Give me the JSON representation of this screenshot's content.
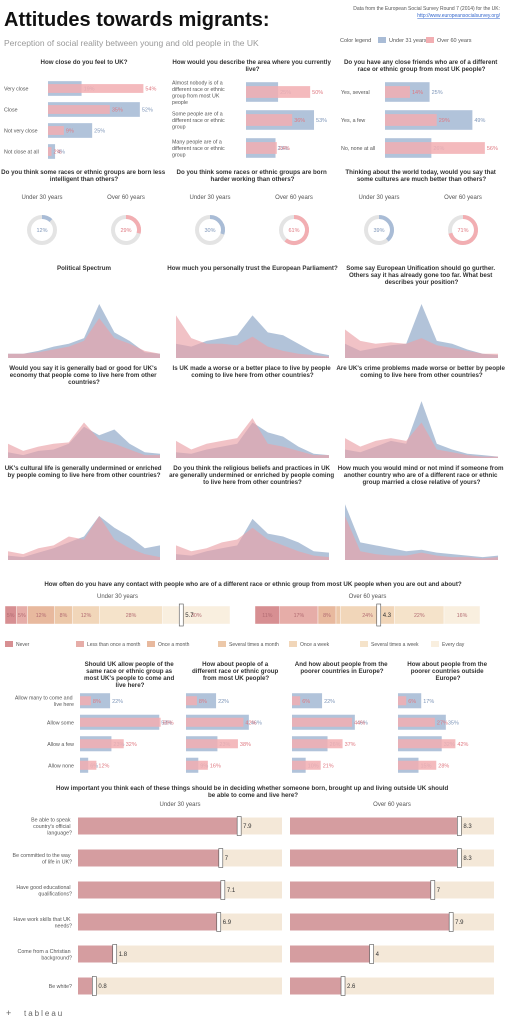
{
  "header": {
    "title": "Attitudes towards migrants:",
    "subtitle": "Perception of social reality between young and old people in the UK",
    "source": "Data from the European Social Survey Round 7 (2014) for the UK:",
    "link": "http://www.europeansocialsurvey.org/",
    "legend_title": "Color legend",
    "legend": [
      {
        "name": "Under 31 years",
        "color": "#a9bcd6"
      },
      {
        "name": "Over 60 years",
        "color": "#f2aeb2"
      }
    ],
    "footer": "tableau"
  },
  "chart_data": [
    {
      "type": "hbar",
      "title": "How close do you feel to UK?",
      "categories": [
        "Very close",
        "Close",
        "Not very close",
        "Not close at all"
      ],
      "xlim": [
        0,
        60
      ],
      "series": [
        {
          "color": "#a9bcd6",
          "values": [
            19,
            52,
            25,
            4
          ],
          "value_labels": [
            "19%",
            "52%",
            "25%",
            "4%"
          ]
        },
        {
          "color": "#f2aeb2",
          "values": [
            54,
            35,
            9,
            2
          ],
          "value_labels": [
            "54%",
            "35%",
            "9%",
            "2%"
          ]
        }
      ]
    },
    {
      "type": "hbar",
      "title": "How would you describe the area where you currently live?",
      "categories": [
        "Almost nobody is of a different race or ethnic group from most UK people",
        "Some people are of a different race or ethnic group",
        "Many people are of a different race or ethnic group"
      ],
      "xlim": [
        0,
        60
      ],
      "series": [
        {
          "color": "#a9bcd6",
          "values": [
            25,
            53,
            23
          ],
          "value_labels": [
            "25%",
            "53%",
            "23%"
          ]
        },
        {
          "color": "#f2aeb2",
          "values": [
            50,
            36,
            24
          ],
          "value_labels": [
            "50%",
            "36%",
            "24%"
          ]
        }
      ]
    },
    {
      "type": "hbar",
      "title": "Do you have any close friends who are of a different race or ethnic group from most UK people?",
      "categories": [
        "Yes, several",
        "Yes, a few",
        "No, none at all"
      ],
      "xlim": [
        0,
        60
      ],
      "series": [
        {
          "color": "#a9bcd6",
          "values": [
            25,
            49,
            26
          ],
          "value_labels": [
            "25%",
            "49%",
            "26%"
          ]
        },
        {
          "color": "#f2aeb2",
          "values": [
            14,
            29,
            56
          ],
          "value_labels": [
            "14%",
            "29%",
            "56%"
          ]
        }
      ]
    },
    {
      "type": "donut",
      "title": "Do you think some races or ethnic groups are born less intelligent than others?",
      "groups": [
        "Under 30 years",
        "Over 60 years"
      ],
      "values": [
        12,
        29
      ],
      "value_labels": [
        "12%",
        "29%"
      ],
      "colors": [
        "#a9bcd6",
        "#f2aeb2"
      ],
      "ylim": [
        0,
        100
      ]
    },
    {
      "type": "donut",
      "title": "Do you think some races or ethnic groups are born harder working than others?",
      "groups": [
        "Under 30 years",
        "Over 60 years"
      ],
      "values": [
        30,
        61
      ],
      "value_labels": [
        "30%",
        "61%"
      ],
      "colors": [
        "#a9bcd6",
        "#f2aeb2"
      ],
      "ylim": [
        0,
        100
      ]
    },
    {
      "type": "donut",
      "title": "Thinking about the world today, would you say that some cultures are much better than others?",
      "groups": [
        "Under 30 years",
        "Over 60 years"
      ],
      "values": [
        39,
        71
      ],
      "value_labels": [
        "39%",
        "71%"
      ],
      "colors": [
        "#a9bcd6",
        "#f2aeb2"
      ],
      "ylim": [
        0,
        100
      ]
    },
    {
      "type": "area",
      "title": "Political Spectrum",
      "ylim": [
        0,
        45
      ],
      "series": [
        {
          "color": "#9fb4d0",
          "values": [
            3,
            3,
            5,
            8,
            10,
            14,
            38,
            18,
            12,
            4,
            3
          ]
        },
        {
          "color": "#e9a2a8",
          "values": [
            3,
            3,
            4,
            6,
            8,
            12,
            28,
            14,
            10,
            5,
            3
          ]
        }
      ]
    },
    {
      "type": "area",
      "title": "How much you personally trust the European Parliament?",
      "ylim": [
        0,
        45
      ],
      "series": [
        {
          "color": "#9fb4d0",
          "values": [
            10,
            8,
            12,
            14,
            16,
            30,
            18,
            16,
            10,
            4,
            2
          ]
        },
        {
          "color": "#e9a2a8",
          "values": [
            30,
            14,
            10,
            10,
            9,
            15,
            8,
            5,
            3,
            2,
            1
          ]
        }
      ]
    },
    {
      "type": "area",
      "title": "Some say European Unification should go gurther. Others say it has already gone too far. What best describes your position?",
      "ylim": [
        0,
        45
      ],
      "series": [
        {
          "color": "#9fb4d0",
          "values": [
            10,
            5,
            7,
            9,
            10,
            38,
            12,
            10,
            6,
            3,
            2
          ]
        },
        {
          "color": "#e9a2a8",
          "values": [
            20,
            12,
            10,
            11,
            10,
            14,
            9,
            7,
            5,
            3,
            3
          ]
        }
      ]
    },
    {
      "type": "area",
      "title": "Would you say it is generally bad or good for UK's economy that people come to live here from other countries?",
      "ylim": [
        0,
        45
      ],
      "series": [
        {
          "color": "#9fb4d0",
          "values": [
            4,
            2,
            5,
            6,
            10,
            22,
            16,
            20,
            10,
            4,
            3
          ]
        },
        {
          "color": "#e9a2a8",
          "values": [
            10,
            5,
            8,
            10,
            11,
            25,
            13,
            10,
            6,
            2,
            2
          ]
        }
      ]
    },
    {
      "type": "area",
      "title": "Is UK made a worse or a better place to live by people coming to live here from other countries?",
      "ylim": [
        0,
        45
      ],
      "series": [
        {
          "color": "#9fb4d0",
          "values": [
            4,
            3,
            6,
            8,
            10,
            25,
            18,
            15,
            8,
            3,
            2
          ]
        },
        {
          "color": "#e9a2a8",
          "values": [
            12,
            6,
            10,
            12,
            14,
            28,
            10,
            8,
            5,
            2,
            2
          ]
        }
      ]
    },
    {
      "type": "area",
      "title": "Are UK's crime problems made worse or better by people coming to live here from other countries?",
      "ylim": [
        0,
        45
      ],
      "series": [
        {
          "color": "#9fb4d0",
          "values": [
            6,
            4,
            8,
            12,
            10,
            40,
            10,
            6,
            3,
            2,
            1
          ]
        },
        {
          "color": "#e9a2a8",
          "values": [
            14,
            8,
            12,
            14,
            12,
            25,
            6,
            4,
            2,
            1,
            1
          ]
        }
      ]
    },
    {
      "type": "area",
      "title": "UK's cultural life is generally undermined or enriched by people coming to live here from other countries?",
      "ylim": [
        0,
        45
      ],
      "series": [
        {
          "color": "#9fb4d0",
          "values": [
            3,
            2,
            5,
            8,
            12,
            16,
            30,
            22,
            16,
            8,
            10
          ]
        },
        {
          "color": "#e9a2a8",
          "values": [
            6,
            4,
            8,
            10,
            16,
            14,
            30,
            14,
            8,
            4,
            2
          ]
        }
      ]
    },
    {
      "type": "area",
      "title": "Do you think the religious beliefs and practices in UK are generally undermined or enriched by people coming to live here from other countries?",
      "ylim": [
        0,
        45
      ],
      "series": [
        {
          "color": "#9fb4d0",
          "values": [
            4,
            3,
            6,
            8,
            10,
            28,
            18,
            16,
            12,
            6,
            5
          ]
        },
        {
          "color": "#e9a2a8",
          "values": [
            10,
            6,
            8,
            12,
            14,
            22,
            14,
            10,
            6,
            3,
            2
          ]
        }
      ]
    },
    {
      "type": "area",
      "title": "How much you would mind or not mind if someone from another country who are of a different race or ethnic group married a close relative of yours?",
      "ylim": [
        0,
        45
      ],
      "series": [
        {
          "color": "#9fb4d0",
          "values": [
            38,
            12,
            10,
            8,
            6,
            7,
            5,
            4,
            3,
            2,
            3
          ]
        },
        {
          "color": "#e9a2a8",
          "values": [
            30,
            6,
            4,
            3,
            3,
            5,
            3,
            2,
            2,
            1,
            2
          ]
        }
      ]
    },
    {
      "type": "stacked_bar",
      "title": "How often do you have any contact with people who are of a different race or ethnic group from most UK people when you are out and about?",
      "categories": [
        "Never",
        "Less than once a month",
        "Once a month",
        "Several times a month",
        "Once a week",
        "Several times a week",
        "Every day"
      ],
      "colors": [
        "#d78f92",
        "#e6ada8",
        "#e8b99e",
        "#ecc8a9",
        "#f1d6b9",
        "#f5e3ca",
        "#f9efdf"
      ],
      "xlim": [
        0,
        100
      ],
      "mean_lim": [
        1,
        7
      ],
      "series": [
        {
          "name": "Under 30 years",
          "values": [
            5,
            5,
            12,
            8,
            12,
            28,
            30
          ],
          "value_labels": [
            "5%",
            "5%",
            "12%",
            "8%",
            "12%",
            "28%",
            "30%"
          ],
          "mean": 5.7
        },
        {
          "name": "Over 60 years",
          "values": [
            11,
            17,
            8,
            2,
            24,
            22,
            16
          ],
          "value_labels": [
            "11%",
            "17%",
            "8%",
            "2%",
            "24%",
            "22%",
            "16%"
          ],
          "mean": 4.3
        }
      ]
    },
    {
      "type": "hbar_panel",
      "categories": [
        "Allow many to come and live here",
        "Allow some",
        "Allow a few",
        "Allow none"
      ],
      "xlim": [
        0,
        60
      ],
      "panels": [
        {
          "title": "Should UK allow people of the same race or ethnic group as most UK's people to come and live here?",
          "series": [
            {
              "color": "#a9bcd6",
              "values": [
                22,
                58,
                23,
                6
              ],
              "value_labels": [
                "22%",
                "58%",
                "23%",
                "6%"
              ]
            },
            {
              "color": "#f2aeb2",
              "values": [
                8,
                59,
                32,
                12
              ],
              "value_labels": [
                "8%",
                "59%",
                "32%",
                "12%"
              ]
            }
          ]
        },
        {
          "title": "How about people of a different race or ethnic group from most UK people?",
          "series": [
            {
              "color": "#a9bcd6",
              "values": [
                22,
                46,
                23,
                9
              ],
              "value_labels": [
                "22%",
                "46%",
                "23%",
                "9%"
              ]
            },
            {
              "color": "#f2aeb2",
              "values": [
                8,
                42,
                38,
                16
              ],
              "value_labels": [
                "8%",
                "42%",
                "38%",
                "16%"
              ]
            }
          ]
        },
        {
          "title": "And how about people from the poorer countries in Europe?",
          "series": [
            {
              "color": "#a9bcd6",
              "values": [
                22,
                46,
                26,
                10
              ],
              "value_labels": [
                "22%",
                "46%",
                "26%",
                "10%"
              ]
            },
            {
              "color": "#f2aeb2",
              "values": [
                6,
                44,
                37,
                21
              ],
              "value_labels": [
                "6%",
                "44%",
                "37%",
                "21%"
              ]
            }
          ]
        },
        {
          "title": "How about people from the poorer countries outside Europe?",
          "series": [
            {
              "color": "#a9bcd6",
              "values": [
                17,
                35,
                32,
                15
              ],
              "value_labels": [
                "17%",
                "35%",
                "32%",
                "15%"
              ]
            },
            {
              "color": "#f2aeb2",
              "values": [
                6,
                27,
                42,
                28
              ],
              "value_labels": [
                "6%",
                "27%",
                "42%",
                "28%"
              ]
            }
          ]
        }
      ]
    },
    {
      "type": "dot",
      "title": "How important you think each of these things should be in deciding whether someone born, brought up and living outside UK should be able to come and live here?",
      "categories": [
        "Be able to speak country's official language?",
        "Be committed to the way of life in UK?",
        "Have good educational qualifications?",
        "Have work skills that UK needs?",
        "Come from a Christian background?",
        "Be white?"
      ],
      "xlim": [
        0,
        10
      ],
      "series": [
        {
          "name": "Under 30 years",
          "color": "#cf8f96",
          "values": [
            7.9,
            7.0,
            7.1,
            6.9,
            1.8,
            0.8
          ]
        },
        {
          "name": "Over 60 years",
          "color": "#cf8f96",
          "values": [
            8.3,
            8.3,
            7.0,
            7.9,
            4.0,
            2.6
          ]
        }
      ]
    }
  ]
}
